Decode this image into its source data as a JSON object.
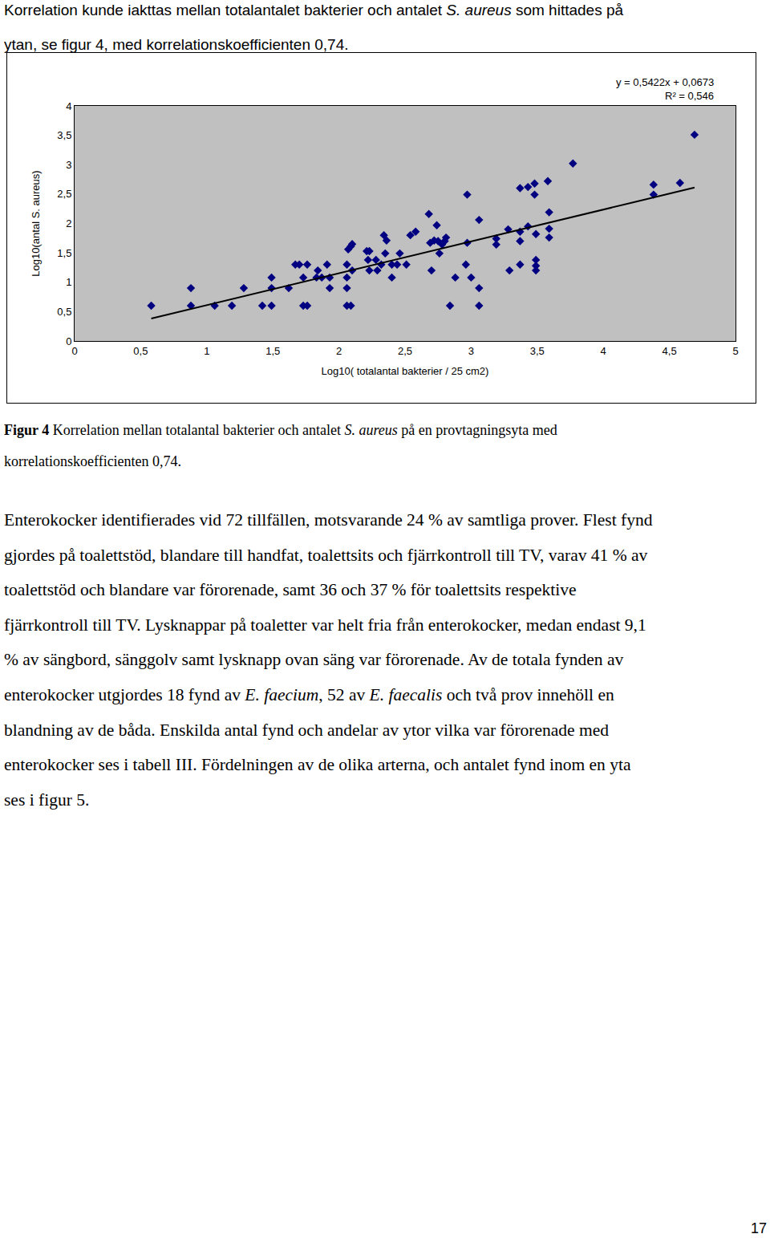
{
  "intro": {
    "lines": [
      [
        "Korrelation kunde iakttas mellan totalantalet bakterier och antalet ",
        {
          "text": "S. aureus",
          "italic": true
        },
        " som hittades på"
      ],
      [
        "ytan, se figur 4, med korrelationskoefficienten 0,74."
      ]
    ]
  },
  "chart_data": {
    "type": "scatter",
    "x_label": "Log10( totalantal bakterier / 25 cm2)",
    "y_label": "Log10(antal S. aureus)",
    "annotations": [
      "y = 0,5422x + 0,0673",
      "R² = 0,546"
    ],
    "trendline": {
      "slope": 0.5422,
      "intercept": 0.0673,
      "r2": 0.546,
      "color": "#000000"
    },
    "color": "#000080",
    "marker": "diamond",
    "grid": false,
    "xlim": [
      0,
      5
    ],
    "ylim": [
      0,
      4
    ],
    "xticks": [
      0,
      {
        "value": 0.5,
        "label": "0,5"
      },
      1,
      {
        "value": 1.5,
        "label": "1,5"
      },
      2,
      {
        "value": 2.5,
        "label": "2,5"
      },
      3,
      {
        "value": 3.5,
        "label": "3,5"
      },
      4,
      {
        "value": 4.5,
        "label": "4,5"
      },
      5
    ],
    "yticks": [
      0,
      {
        "value": 0.5,
        "label": "0,5"
      },
      1,
      {
        "value": 1.5,
        "label": "1,5"
      },
      2,
      {
        "value": 2.5,
        "label": "2,5"
      },
      3,
      {
        "value": 3.5,
        "label": "3,5"
      },
      4
    ],
    "x": [
      0.58,
      0.88,
      0.88,
      1.06,
      1.19,
      1.28,
      1.42,
      1.49,
      1.49,
      1.49,
      1.62,
      1.67,
      1.7,
      1.73,
      1.73,
      1.76,
      1.76,
      1.83,
      1.84,
      1.87,
      1.91,
      1.93,
      1.93,
      2.06,
      2.09,
      2.06,
      2.06,
      2.06,
      2.07,
      2.09,
      2.1,
      2.1,
      2.21,
      2.23,
      2.22,
      2.23,
      2.28,
      2.29,
      2.32,
      2.34,
      2.36,
      2.35,
      2.4,
      2.4,
      2.44,
      2.46,
      2.51,
      2.54,
      2.58,
      2.68,
      2.69,
      2.7,
      2.72,
      2.74,
      2.75,
      2.76,
      2.78,
      2.8,
      2.81,
      2.84,
      2.88,
      2.97,
      2.97,
      2.96,
      3.0,
      3.06,
      3.06,
      3.06,
      3.19,
      3.19,
      3.28,
      3.29,
      3.37,
      3.37,
      3.37,
      3.37,
      3.43,
      3.43,
      3.48,
      3.48,
      3.49,
      3.49,
      3.49,
      3.49,
      3.58,
      3.59,
      3.59,
      3.59,
      3.77,
      4.38,
      4.38,
      4.58,
      4.69
    ],
    "values": [
      0.6,
      0.6,
      0.9,
      0.6,
      0.6,
      0.9,
      0.6,
      0.6,
      0.9,
      1.08,
      0.9,
      1.3,
      1.3,
      1.08,
      0.6,
      0.6,
      1.3,
      1.08,
      1.2,
      1.08,
      1.3,
      1.08,
      0.9,
      0.6,
      0.6,
      0.9,
      1.08,
      1.3,
      1.56,
      1.61,
      1.65,
      1.2,
      1.53,
      1.53,
      1.38,
      1.2,
      1.38,
      1.2,
      1.3,
      1.8,
      1.71,
      1.49,
      1.08,
      1.3,
      1.3,
      1.49,
      1.3,
      1.8,
      1.86,
      2.16,
      1.67,
      1.2,
      1.71,
      1.97,
      1.7,
      1.49,
      1.64,
      1.7,
      1.76,
      0.6,
      1.08,
      2.49,
      1.67,
      1.3,
      1.08,
      2.06,
      0.9,
      0.6,
      1.74,
      1.64,
      1.9,
      1.2,
      2.6,
      1.86,
      1.7,
      1.3,
      2.62,
      1.95,
      2.68,
      2.49,
      1.82,
      1.38,
      1.28,
      1.2,
      2.72,
      2.19,
      1.91,
      1.76,
      3.02,
      2.66,
      2.49,
      2.69,
      3.51
    ]
  },
  "caption": {
    "lines": [
      [
        {
          "text": "Figur 4",
          "bold": true
        },
        " Korrelation mellan totalantal bakterier och antalet ",
        {
          "text": "S. aureus",
          "italic": true
        },
        " på en provtagningsyta med"
      ],
      [
        "korrelationskoefficienten 0,74."
      ]
    ]
  },
  "paragraph": {
    "lines": [
      [
        "Enterokocker identifierades vid 72 tillfällen, motsvarande 24 % av samtliga prover. Flest fynd"
      ],
      [
        "gjordes på toalettstöd, blandare till handfat, toalettsits och fjärrkontroll till TV, varav 41 % av"
      ],
      [
        "toalettstöd och blandare var förorenade, samt 36 och 37 % för toalettsits respektive"
      ],
      [
        "fjärrkontroll till TV. Lysknappar på toaletter var helt fria från enterokocker, medan endast 9,1"
      ],
      [
        "% av sängbord, sänggolv samt lysknapp ovan säng var förorenade. Av de totala fynden av"
      ],
      [
        "enterokocker utgjordes 18 fynd av ",
        {
          "text": "E. faecium",
          "italic": true
        },
        ", 52 av ",
        {
          "text": "E. faecalis",
          "italic": true
        },
        " och två prov innehöll en"
      ],
      [
        "blandning av de båda. Enskilda antal fynd och andelar av ytor vilka var förorenade med"
      ],
      [
        "enterokocker ses i tabell III. Fördelningen av de olika arterna, och antalet fynd inom en yta"
      ],
      [
        "ses i figur 5."
      ]
    ]
  },
  "page_number": 17
}
